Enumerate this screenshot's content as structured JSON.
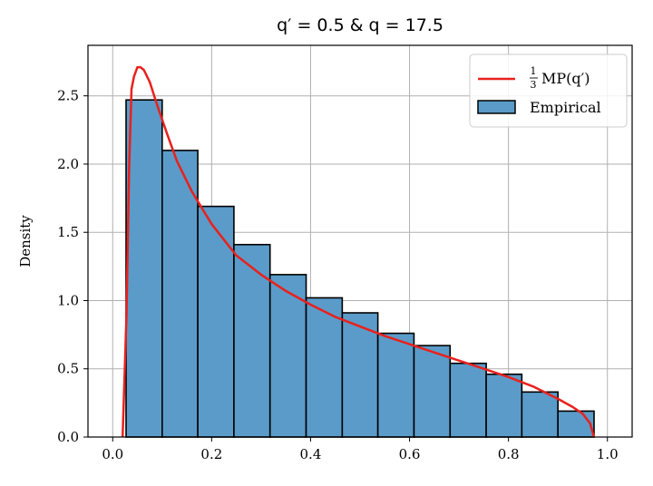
{
  "chart_data": {
    "type": "bar",
    "title": "q′ = 0.5 & q = 17.5",
    "ylabel": "Density",
    "xlabel": "",
    "xlim": [
      -0.05,
      1.05
    ],
    "ylim": [
      0,
      2.87
    ],
    "grid": true,
    "legend_position": "top-right",
    "x_ticks": [
      0.0,
      0.2,
      0.4,
      0.6,
      0.8,
      1.0
    ],
    "x_tick_labels": [
      "0.0",
      "0.2",
      "0.4",
      "0.6",
      "0.8",
      "1.0"
    ],
    "y_ticks": [
      0.0,
      0.5,
      1.0,
      1.5,
      2.0,
      2.5
    ],
    "y_tick_labels": [
      "0.0",
      "0.5",
      "1.0",
      "1.5",
      "2.0",
      "2.5"
    ],
    "histogram": {
      "name": "Empirical",
      "color": "#5b9bc9",
      "edge_color": "#000000",
      "bin_edges": [
        0.027,
        0.1,
        0.172,
        0.245,
        0.318,
        0.391,
        0.464,
        0.536,
        0.609,
        0.682,
        0.755,
        0.827,
        0.9,
        0.973
      ],
      "values": [
        2.47,
        2.1,
        1.69,
        1.41,
        1.19,
        1.02,
        0.91,
        0.76,
        0.67,
        0.54,
        0.46,
        0.33,
        0.19
      ]
    },
    "curve": {
      "name": "1/3 MP(q′)",
      "color": "#e8211d",
      "x": [
        0.02,
        0.028,
        0.033,
        0.038,
        0.043,
        0.05,
        0.056,
        0.063,
        0.075,
        0.09,
        0.11,
        0.13,
        0.16,
        0.2,
        0.25,
        0.3,
        0.35,
        0.4,
        0.45,
        0.5,
        0.55,
        0.6,
        0.65,
        0.7,
        0.75,
        0.8,
        0.85,
        0.9,
        0.93,
        0.95,
        0.965,
        0.973
      ],
      "y": [
        0.0,
        0.9,
        1.95,
        2.55,
        2.64,
        2.71,
        2.71,
        2.69,
        2.6,
        2.43,
        2.22,
        2.02,
        1.8,
        1.56,
        1.33,
        1.19,
        1.07,
        0.97,
        0.88,
        0.81,
        0.74,
        0.68,
        0.62,
        0.56,
        0.5,
        0.44,
        0.37,
        0.28,
        0.22,
        0.17,
        0.1,
        0.0
      ]
    }
  },
  "legend": {
    "curve_label_fraction_num": "1",
    "curve_label_fraction_den": "3",
    "curve_label_text": "MP(q′)",
    "hist_label": "Empirical"
  }
}
